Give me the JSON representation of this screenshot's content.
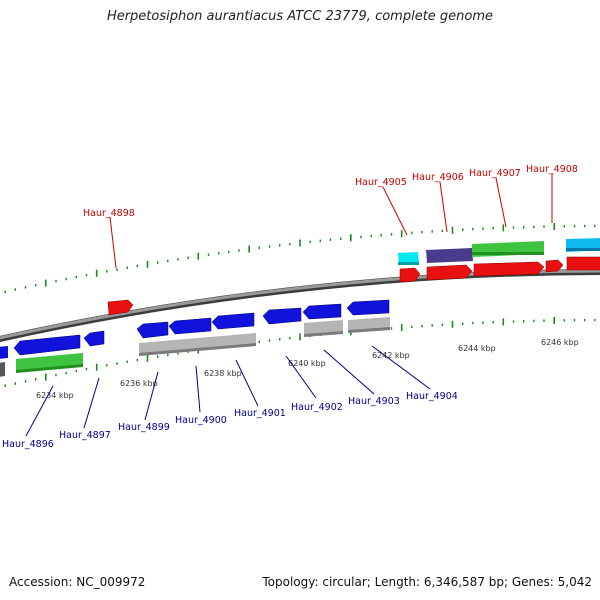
{
  "title": "Herpetosiphon aurantiacus ATCC 23779, complete genome",
  "accession": "Accession: NC_009972",
  "topology": "Topology: circular; Length: 6,346,587 bp; Genes: 5,042",
  "colors": {
    "forward_cds": "#e81010",
    "reverse_cds": "#1212dd",
    "forward_label": "#c80000",
    "reverse_label": "#00008b",
    "tick": "#1a8a1a",
    "backbone": "#7a7a7a",
    "cog_green": "#3ec43e",
    "cog_gray": "#b5b5b5",
    "cog_cyan": "#00e8f0",
    "cog_purple": "#4a3c8c",
    "cog_skyblue": "#10b8f0"
  },
  "ticks": [
    {
      "label": "6234 kbp",
      "pos": 6234
    },
    {
      "label": "6236 kbp",
      "pos": 6236
    },
    {
      "label": "6238 kbp",
      "pos": 6238
    },
    {
      "label": "6240 kbp",
      "pos": 6240
    },
    {
      "label": "6242 kbp",
      "pos": 6242
    },
    {
      "label": "6244 kbp",
      "pos": 6244
    },
    {
      "label": "6246 kbp",
      "pos": 6246
    }
  ],
  "forward_labels": [
    {
      "name": "Haur_4898"
    },
    {
      "name": "Haur_4905"
    },
    {
      "name": "Haur_4906"
    },
    {
      "name": "Haur_4907"
    },
    {
      "name": "Haur_4908"
    }
  ],
  "reverse_labels": [
    {
      "name": "Haur_4896"
    },
    {
      "name": "Haur_4897"
    },
    {
      "name": "Haur_4899"
    },
    {
      "name": "Haur_4900"
    },
    {
      "name": "Haur_4901"
    },
    {
      "name": "Haur_4902"
    },
    {
      "name": "Haur_4903"
    },
    {
      "name": "Haur_4904"
    }
  ]
}
